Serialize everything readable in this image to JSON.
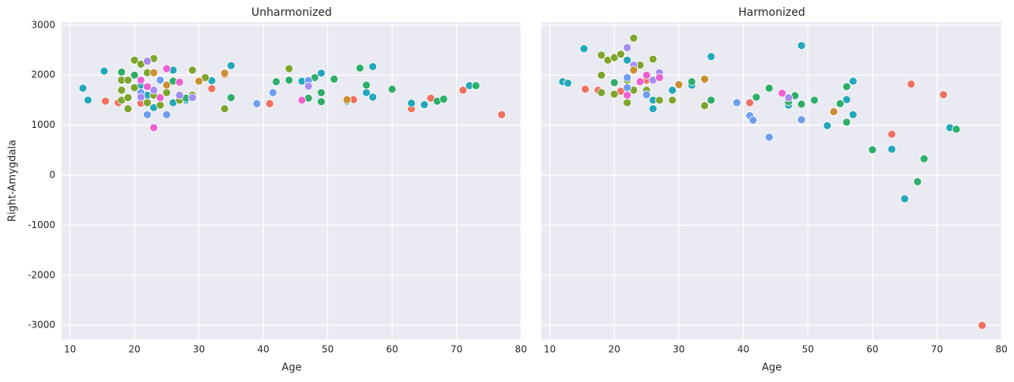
{
  "chart_data": [
    {
      "type": "scatter",
      "title": "Unharmonized",
      "xlabel": "Age",
      "ylabel": "Right-Amygdala",
      "xlim": [
        8.7,
        80.1
      ],
      "xticks": [
        10,
        20,
        30,
        40,
        50,
        60,
        70,
        80
      ],
      "ylim": [
        -3280,
        3060
      ],
      "yticks": [
        -3000,
        -2000,
        -1000,
        0,
        1000,
        2000,
        3000
      ],
      "grid": true,
      "series": [
        {
          "color": "#f0705f",
          "x": [
            15.5,
            17.5,
            21,
            41,
            54,
            63,
            66,
            71,
            77,
            32,
            34
          ],
          "values": [
            1480,
            1450,
            1440,
            1430,
            1510,
            1330,
            1540,
            1700,
            1210,
            1730,
            2010
          ]
        },
        {
          "color": "#23a8bb",
          "x": [
            12,
            12.8,
            15.3,
            22,
            26,
            26,
            32,
            35,
            49,
            53,
            56,
            57,
            57,
            63,
            65,
            72,
            46,
            21,
            23,
            28
          ],
          "values": [
            1740,
            1500,
            2080,
            1600,
            2100,
            1450,
            1890,
            2190,
            2040,
            1480,
            1650,
            2170,
            1560,
            1440,
            1410,
            1790,
            1880,
            1800,
            1350,
            1500
          ]
        },
        {
          "color": "#7ea52d",
          "x": [
            18,
            18,
            19,
            19,
            20,
            20,
            21,
            22,
            23,
            23,
            24,
            25,
            29,
            29,
            31,
            18,
            19,
            22,
            24,
            27,
            34,
            44
          ],
          "values": [
            1900,
            1700,
            1330,
            1900,
            2300,
            1750,
            2220,
            2050,
            2330,
            1600,
            1900,
            1650,
            2100,
            1600,
            1950,
            1500,
            1550,
            1450,
            1400,
            1500,
            1330,
            2130
          ]
        },
        {
          "color": "#2fae6b",
          "x": [
            18,
            20,
            35,
            42,
            44,
            47,
            48,
            49,
            49,
            51,
            55,
            56,
            60,
            67,
            68,
            73,
            26,
            28
          ],
          "values": [
            2060,
            2000,
            1550,
            1870,
            1900,
            1540,
            1950,
            1470,
            1650,
            1920,
            2140,
            1800,
            1720,
            1480,
            1520,
            1790,
            1880,
            1540
          ]
        },
        {
          "color": "#6e9cf0",
          "x": [
            22,
            25,
            39,
            41.5,
            47,
            21,
            24
          ],
          "values": [
            1210,
            1210,
            1430,
            1650,
            1890,
            1650,
            1900
          ]
        },
        {
          "color": "#a68cf2",
          "x": [
            22,
            21,
            23,
            27,
            29,
            47
          ],
          "values": [
            2280,
            1560,
            1700,
            1600,
            1550,
            1780
          ]
        },
        {
          "color": "#ee5fd2",
          "x": [
            23,
            21,
            25,
            27,
            24,
            46,
            22
          ],
          "values": [
            950,
            1900,
            2130,
            1860,
            1550,
            1500,
            1770
          ]
        },
        {
          "color": "#c98f30",
          "x": [
            30,
            34,
            53,
            23,
            25
          ],
          "values": [
            1880,
            2040,
            1510,
            2050,
            1800
          ]
        }
      ]
    },
    {
      "type": "scatter",
      "title": "Harmonized",
      "xlabel": "Age",
      "sharey": true,
      "xlim": [
        8.7,
        80.1
      ],
      "xticks": [
        10,
        20,
        30,
        40,
        50,
        60,
        70,
        80
      ],
      "grid": true,
      "series": [
        {
          "color": "#f0705f",
          "x": [
            15.5,
            17.5,
            21,
            41,
            54,
            63,
            66,
            71,
            77,
            25
          ],
          "values": [
            1720,
            1700,
            1680,
            1450,
            1270,
            820,
            1820,
            1610,
            -3000,
            1900
          ]
        },
        {
          "color": "#23a8bb",
          "x": [
            12,
            12.8,
            15.3,
            22,
            26,
            26,
            32,
            35,
            49,
            53,
            56,
            57,
            57,
            63,
            65,
            72,
            47,
            22,
            29
          ],
          "values": [
            1870,
            1840,
            2530,
            1600,
            1330,
            1500,
            1800,
            2370,
            2590,
            990,
            1510,
            1880,
            1210,
            520,
            -470,
            950,
            1400,
            2300,
            1700
          ]
        },
        {
          "color": "#7ea52d",
          "x": [
            18,
            18,
            19,
            20,
            21,
            22,
            23,
            23,
            24,
            26,
            27,
            29,
            30,
            18,
            20,
            22,
            25,
            34,
            34
          ],
          "values": [
            2400,
            1650,
            2300,
            2350,
            2420,
            1900,
            2740,
            1700,
            2200,
            2320,
            1500,
            1500,
            1800,
            2000,
            1620,
            1450,
            1700,
            1390,
            1900
          ]
        },
        {
          "color": "#2fae6b",
          "x": [
            35,
            42,
            44,
            47,
            48,
            49,
            51,
            55,
            56,
            56,
            60,
            67,
            68,
            73,
            32,
            20
          ],
          "values": [
            1500,
            1560,
            1740,
            1470,
            1590,
            1420,
            1500,
            1430,
            1060,
            1770,
            510,
            -130,
            330,
            920,
            1870,
            1850
          ]
        },
        {
          "color": "#6e9cf0",
          "x": [
            22,
            25,
            39,
            41,
            41.5,
            44,
            49,
            22
          ],
          "values": [
            1750,
            1610,
            1450,
            1190,
            1100,
            760,
            1110,
            1950
          ]
        },
        {
          "color": "#a68cf2",
          "x": [
            22,
            23,
            27,
            47,
            26
          ],
          "values": [
            2550,
            2200,
            2050,
            1550,
            1900
          ]
        },
        {
          "color": "#ee5fd2",
          "x": [
            22,
            25,
            27,
            46,
            24
          ],
          "values": [
            1600,
            2000,
            1950,
            1640,
            1870
          ]
        },
        {
          "color": "#c98f30",
          "x": [
            30,
            34,
            54,
            23
          ],
          "values": [
            1810,
            1920,
            1270,
            2100
          ]
        }
      ]
    }
  ]
}
